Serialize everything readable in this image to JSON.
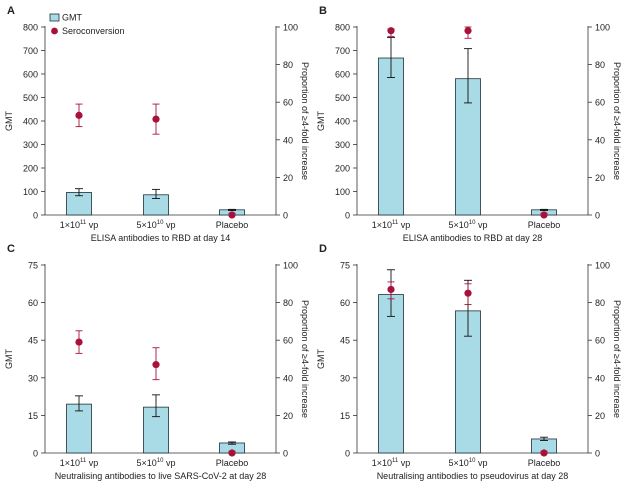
{
  "figure": {
    "legend": {
      "gmt_label": "GMT",
      "sero_label": "Seroconversion"
    },
    "colors": {
      "bar_fill": "#a9dbe6",
      "bar_stroke": "#1f2f3a",
      "point": "#a8123a",
      "axis": "#333333"
    },
    "y2_label": "Proportion of ≥4-fold increase",
    "y_label": "GMT"
  },
  "chart_data": [
    {
      "panel": "A",
      "type": "bar",
      "title": "A",
      "xlabel": "ELISA antibodies to RBD at day 14",
      "ylabel": "GMT",
      "y2label": "Proportion of ≥4-fold increase",
      "ylim": [
        0,
        800
      ],
      "yticks": [
        0,
        100,
        200,
        300,
        400,
        500,
        600,
        700,
        800
      ],
      "y2lim": [
        0,
        100
      ],
      "y2ticks": [
        0,
        20,
        40,
        60,
        80,
        100
      ],
      "categories": [
        {
          "base": "1×10",
          "exp": "11",
          "unit": " vp"
        },
        {
          "base": "5×10",
          "exp": "10",
          "unit": " vp"
        },
        {
          "base": "Placebo",
          "exp": "",
          "unit": ""
        }
      ],
      "series": [
        {
          "name": "GMT",
          "values": [
            96,
            86,
            22
          ],
          "err_low": [
            82,
            70,
            19
          ],
          "err_high": [
            112,
            109,
            24
          ]
        },
        {
          "name": "Seroconversion",
          "values": [
            53,
            51,
            0
          ],
          "err_low": [
            47,
            43,
            0
          ],
          "err_high": [
            59,
            59,
            1
          ]
        }
      ],
      "show_legend": true
    },
    {
      "panel": "B",
      "type": "bar",
      "title": "B",
      "xlabel": "ELISA antibodies to RBD at day 28",
      "ylabel": "GMT",
      "y2label": "Proportion of ≥4-fold increase",
      "ylim": [
        0,
        800
      ],
      "yticks": [
        0,
        100,
        200,
        300,
        400,
        500,
        600,
        700,
        800
      ],
      "y2lim": [
        0,
        100
      ],
      "y2ticks": [
        0,
        20,
        40,
        60,
        80,
        100
      ],
      "categories": [
        {
          "base": "1×10",
          "exp": "11",
          "unit": " vp"
        },
        {
          "base": "5×10",
          "exp": "10",
          "unit": " vp"
        },
        {
          "base": "Placebo",
          "exp": "",
          "unit": ""
        }
      ],
      "series": [
        {
          "name": "GMT",
          "values": [
            668,
            580,
            22
          ],
          "err_low": [
            585,
            477,
            19
          ],
          "err_high": [
            755,
            708,
            24
          ]
        },
        {
          "name": "Seroconversion",
          "values": [
            98,
            98,
            0
          ],
          "err_low": [
            95,
            94,
            0
          ],
          "err_high": [
            99,
            100,
            1
          ]
        }
      ],
      "show_legend": false
    },
    {
      "panel": "C",
      "type": "bar",
      "title": "C",
      "xlabel": "Neutralising antibodies to live SARS-CoV-2 at day 28",
      "ylabel": "GMT",
      "y2label": "Proportion of ≥4-fold increase",
      "ylim": [
        0,
        75
      ],
      "yticks": [
        0,
        15,
        30,
        45,
        60,
        75
      ],
      "y2lim": [
        0,
        100
      ],
      "y2ticks": [
        0,
        20,
        40,
        60,
        80,
        100
      ],
      "categories": [
        {
          "base": "1×10",
          "exp": "11",
          "unit": " vp"
        },
        {
          "base": "5×10",
          "exp": "10",
          "unit": " vp"
        },
        {
          "base": "Placebo",
          "exp": "",
          "unit": ""
        }
      ],
      "series": [
        {
          "name": "GMT",
          "values": [
            19.5,
            18.3,
            4.0
          ],
          "err_low": [
            16.8,
            14.5,
            3.5
          ],
          "err_high": [
            22.8,
            23.2,
            4.4
          ]
        },
        {
          "name": "Seroconversion",
          "values": [
            59,
            47,
            0
          ],
          "err_low": [
            53,
            39,
            0
          ],
          "err_high": [
            65,
            56,
            1
          ]
        }
      ],
      "show_legend": false
    },
    {
      "panel": "D",
      "type": "bar",
      "title": "D",
      "xlabel": "Neutralising antibodies to pseudovirus at day 28",
      "ylabel": "GMT",
      "y2label": "Proportion of ≥4-fold increase",
      "ylim": [
        0,
        75
      ],
      "yticks": [
        0,
        15,
        30,
        45,
        60,
        75
      ],
      "y2lim": [
        0,
        100
      ],
      "y2ticks": [
        0,
        20,
        40,
        60,
        80,
        100
      ],
      "categories": [
        {
          "base": "1×10",
          "exp": "11",
          "unit": " vp"
        },
        {
          "base": "5×10",
          "exp": "10",
          "unit": " vp"
        },
        {
          "base": "Placebo",
          "exp": "",
          "unit": ""
        }
      ],
      "series": [
        {
          "name": "GMT",
          "values": [
            63.2,
            56.7,
            5.6
          ],
          "err_low": [
            54.5,
            46.6,
            5.0
          ],
          "err_high": [
            73.1,
            68.9,
            6.3
          ]
        },
        {
          "name": "Seroconversion",
          "values": [
            87,
            85,
            0
          ],
          "err_low": [
            82,
            79,
            0
          ],
          "err_high": [
            91,
            90,
            1
          ]
        }
      ],
      "show_legend": false
    }
  ]
}
